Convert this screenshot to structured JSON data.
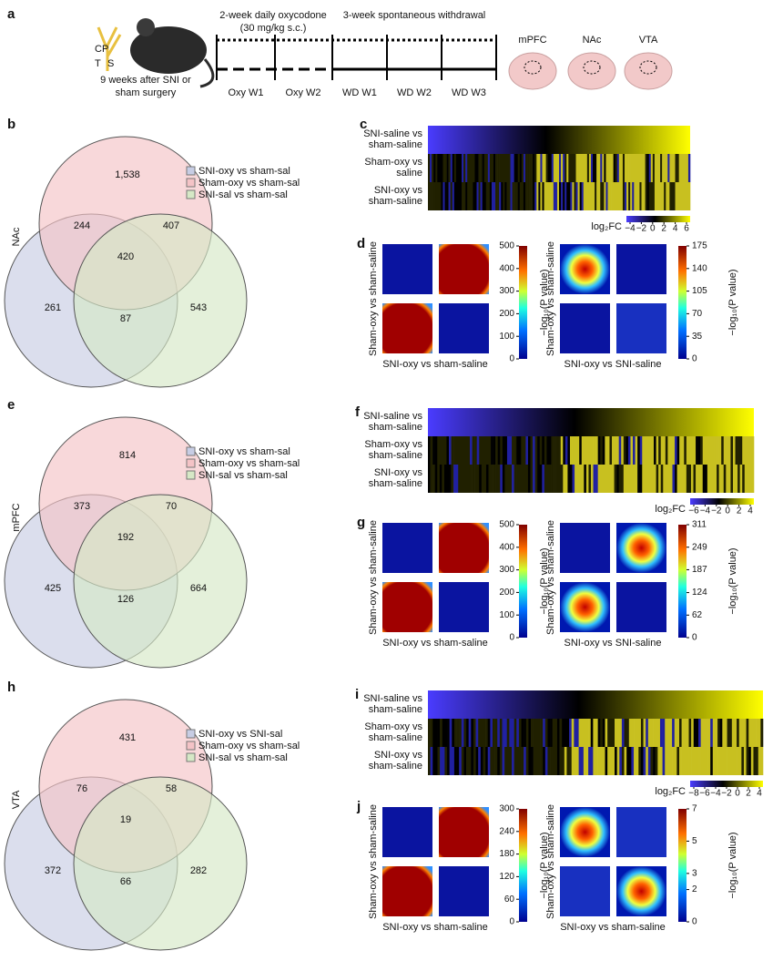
{
  "panel_a": {
    "label": "a",
    "nerve_labels": [
      "CP",
      "T",
      "S"
    ],
    "caption": [
      "9 weeks after SNI or",
      "sham surgery"
    ],
    "treatment": [
      "2-week daily oxycodone",
      "(30 mg/kg s.c.)"
    ],
    "withdrawal": "3-week spontaneous withdrawal",
    "weeks": [
      "Oxy W1",
      "Oxy W2",
      "WD W1",
      "WD W2",
      "WD W3"
    ],
    "regions": [
      "mPFC",
      "NAc",
      "VTA"
    ]
  },
  "rows": [
    {
      "region": "NAc",
      "venn_label": "b",
      "heat_label": "c",
      "rrho_label": "d",
      "legend": [
        "SNI-oxy vs sham-sal",
        "Sham-oxy vs sham-sal",
        "SNI-sal vs sham-sal"
      ],
      "counts": {
        "top": 1538,
        "top_label": "1,538",
        "top_left": 244,
        "top_right": 407,
        "center": 420,
        "left": 261,
        "bottom": 87,
        "right": 543
      },
      "heat_rows": [
        [
          "SNI-saline vs",
          "sham-saline"
        ],
        [
          "Sham-oxy vs",
          "saline"
        ],
        [
          "SNI-oxy vs",
          "sham-saline"
        ]
      ],
      "fc_label": "log₂FC",
      "fc_ticks": [
        {
          "value": -4,
          "label": "−4"
        },
        {
          "value": -2,
          "label": "−2"
        },
        0,
        2,
        4,
        6
      ],
      "rrho1": {
        "y_label": "Sham-oxy vs sham-saline",
        "x_label": "SNI-oxy vs sham-saline",
        "cb_label": "−log₁₀(P value)",
        "ticks": [
          0,
          100,
          200,
          300,
          400,
          500
        ]
      },
      "rrho2": {
        "y_label": "Sham-oxy vs sham-saline",
        "x_label": "SNI-oxy vs SNI-saline",
        "cb_label": "−log₁₀(P value)",
        "ticks": [
          0,
          35,
          70,
          105,
          140,
          175
        ]
      }
    },
    {
      "region": "mPFC",
      "venn_label": "e",
      "heat_label": "f",
      "rrho_label": "g",
      "legend": [
        "SNI-oxy vs sham-sal",
        "Sham-oxy vs sham-sal",
        "SNI-sal vs sham-sal"
      ],
      "counts": {
        "top": 814,
        "top_label": "814",
        "top_left": 373,
        "top_right": 70,
        "center": 192,
        "left": 425,
        "bottom": 126,
        "right": 664
      },
      "heat_rows": [
        [
          "SNI-saline vs",
          "sham-saline"
        ],
        [
          "Sham-oxy vs",
          "sham-saline"
        ],
        [
          "SNI-oxy vs",
          "sham-saline"
        ]
      ],
      "fc_label": "log₂FC",
      "fc_ticks": [
        {
          "value": -6,
          "label": "−6"
        },
        {
          "value": -4,
          "label": "−4"
        },
        {
          "value": -2,
          "label": "−2"
        },
        0,
        2,
        4
      ],
      "rrho1": {
        "y_label": "Sham-oxy vs sham-saline",
        "x_label": "SNI-oxy vs sham-saline",
        "cb_label": "−log₁₀(P value)",
        "ticks": [
          0,
          100,
          200,
          300,
          400,
          500
        ]
      },
      "rrho2": {
        "y_label": "Sham-oxy vs sham-saline",
        "x_label": "SNI-oxy vs SNI-saline",
        "cb_label": "−log₁₀(P value)",
        "ticks": [
          0,
          62,
          124,
          187,
          249,
          311
        ]
      }
    },
    {
      "region": "VTA",
      "venn_label": "h",
      "heat_label": "i",
      "rrho_label": "j",
      "legend": [
        "SNI-oxy vs SNI-sal",
        "Sham-oxy vs sham-sal",
        "SNI-sal vs sham-sal"
      ],
      "counts": {
        "top": 431,
        "top_label": "431",
        "top_left": 76,
        "top_right": 58,
        "center": 19,
        "left": 372,
        "bottom": 66,
        "right": 282
      },
      "heat_rows": [
        [
          "SNI-saline vs",
          "sham-saline"
        ],
        [
          "Sham-oxy vs",
          "sham-saline"
        ],
        [
          "SNI-oxy vs",
          "sham-saline"
        ]
      ],
      "fc_label": "log₂FC",
      "fc_ticks": [
        {
          "value": -8,
          "label": "−8"
        },
        {
          "value": -6,
          "label": "−6"
        },
        {
          "value": -4,
          "label": "−4"
        },
        {
          "value": -2,
          "label": "−2"
        },
        0,
        2,
        4
      ],
      "rrho1": {
        "y_label": "Sham-oxy vs sham-saline",
        "x_label": "SNI-oxy vs sham-saline",
        "cb_label": "−log₁₀(P value)",
        "ticks": [
          0,
          60,
          120,
          180,
          240,
          300
        ]
      },
      "rrho2": {
        "y_label": "Sham-oxy vs sham-saline",
        "x_label": "SNI-oxy vs sham-saline",
        "cb_label": "−log₁₀(P value)",
        "ticks": [
          0,
          2,
          3,
          5,
          7
        ]
      }
    }
  ]
}
